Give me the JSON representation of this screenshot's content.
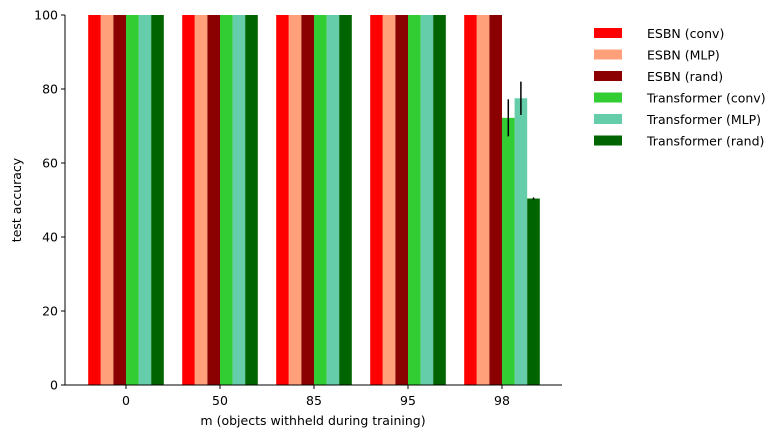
{
  "chart_data": {
    "type": "bar",
    "title": "",
    "xlabel": "m (objects withheld during training)",
    "ylabel": "test accuracy",
    "categories": [
      "0",
      "50",
      "85",
      "95",
      "98"
    ],
    "ylim": [
      0,
      100
    ],
    "yticks": [
      0,
      20,
      40,
      60,
      80,
      100
    ],
    "grid": false,
    "legend_position": "outside-top-right",
    "series": [
      {
        "name": "ESBN (conv)",
        "color": "#ff0000",
        "values": [
          100,
          100,
          100,
          100,
          100
        ],
        "errors": [
          0,
          0,
          0,
          0,
          0
        ]
      },
      {
        "name": "ESBN (MLP)",
        "color": "#ffa07a",
        "values": [
          100,
          100,
          100,
          100,
          100
        ],
        "errors": [
          0,
          0,
          0,
          0,
          0
        ]
      },
      {
        "name": "ESBN (rand)",
        "color": "#8b0000",
        "values": [
          100,
          100,
          100,
          100,
          100
        ],
        "errors": [
          0,
          0,
          0,
          0,
          0
        ]
      },
      {
        "name": "Transformer (conv)",
        "color": "#32cd32",
        "values": [
          100,
          100,
          100,
          100,
          72.2
        ],
        "errors": [
          0,
          0,
          0,
          0,
          5
        ]
      },
      {
        "name": "Transformer (MLP)",
        "color": "#66cdaa",
        "values": [
          100,
          100,
          100,
          100,
          77.5
        ],
        "errors": [
          0,
          0,
          0,
          0,
          4.5
        ]
      },
      {
        "name": "Transformer (rand)",
        "color": "#006400",
        "values": [
          100,
          100,
          100,
          100,
          50.4
        ],
        "errors": [
          0,
          0,
          0,
          0,
          0.3
        ]
      }
    ]
  }
}
